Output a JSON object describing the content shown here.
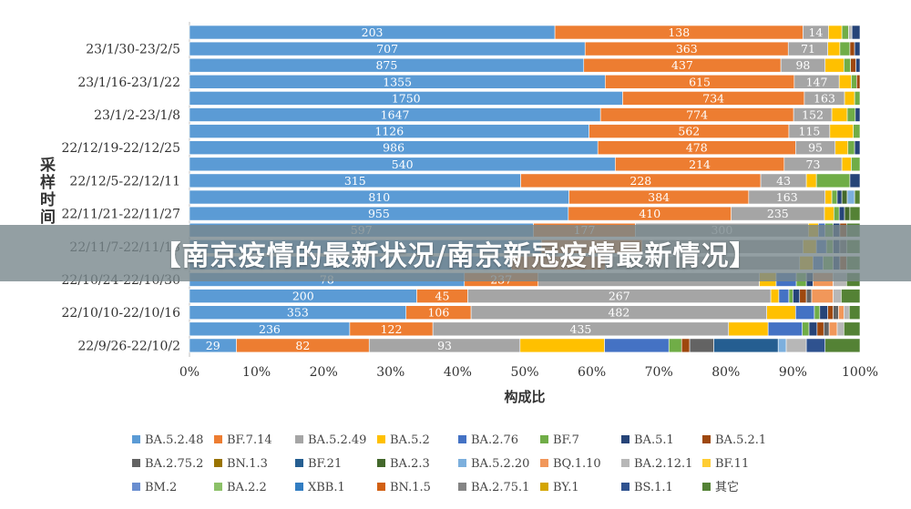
{
  "banner": {
    "text": "【南京疫情的最新状况/南京新冠疫情最新情况】"
  },
  "colors": {
    "BA.5.2.48": "#5B9BD5",
    "BF.7.14": "#ED7D31",
    "BA.5.2.49": "#A5A5A5",
    "BA.5.2": "#FFC000",
    "BA.2.76": "#4472C4",
    "BF.7": "#70AD47",
    "BA.5.1": "#264478",
    "BA.5.2.1": "#9E480E",
    "BA.2.75.2": "#636363",
    "BN.1.3": "#997300",
    "BF.21": "#255E91",
    "BA.2.3": "#43682B",
    "BA.5.2.20": "#7CAFDD",
    "BQ.1.10": "#F1975A",
    "BA.2.12.1": "#B7B7B7",
    "BF.11": "#FFCD33",
    "BM.2": "#698ED0",
    "BA.2.2": "#8CC168",
    "XBB.1": "#327DC2",
    "BN.1.5": "#D26012",
    "BA.2.75.1": "#848484",
    "BY.1": "#D4A500",
    "BS.1.1": "#2F528F",
    "其它": "#548235"
  },
  "chart_data": {
    "type": "bar",
    "orientation": "horizontal",
    "stacked": "percent",
    "xlabel": "构成比",
    "ylabel": "采样时间",
    "xlim": [
      0,
      100
    ],
    "x_ticks": [
      "0%",
      "10%",
      "20%",
      "30%",
      "40%",
      "50%",
      "60%",
      "70%",
      "80%",
      "90%",
      "100%"
    ],
    "y_tick_labels": [
      "23/1/30-23/2/5",
      "23/1/16-23/1/22",
      "23/1/2-23/1/8",
      "22/12/19-22/12/25",
      "22/12/5-22/12/11",
      "22/11/21-22/11/27",
      "22/11/7-22/11/13",
      "22/10/24-22/10/30",
      "22/10/10-22/10/16",
      "22/9/26-22/10/2"
    ],
    "legend": {
      "position": "bottom",
      "items": [
        "BA.5.2.48",
        "BF.7.14",
        "BA.5.2.49",
        "BA.5.2",
        "BA.2.76",
        "BF.7",
        "BA.5.1",
        "BA.5.2.1",
        "BA.2.75.2",
        "BN.1.3",
        "BF.21",
        "BA.2.3",
        "BA.5.2.20",
        "BQ.1.10",
        "BA.2.12.1",
        "BF.11",
        "BM.2",
        "BA.2.2",
        "XBB.1",
        "BN.1.5",
        "BA.2.75.1",
        "BY.1",
        "BS.1.1",
        "其它"
      ]
    },
    "rows": [
      {
        "labels": [
          203,
          138,
          14
        ],
        "segments": [
          [
            "BA.5.2.48",
            54.5
          ],
          [
            "BF.7.14",
            37.0
          ],
          [
            "BA.5.2.49",
            3.8
          ],
          [
            "BA.5.2",
            2.0
          ],
          [
            "BF.7",
            1.0
          ],
          [
            "BA.2.12.1",
            0.5
          ],
          [
            "BA.5.1",
            1.2
          ]
        ]
      },
      {
        "labels": [
          707,
          363,
          71
        ],
        "segments": [
          [
            "BA.5.2.48",
            59.0
          ],
          [
            "BF.7.14",
            30.3
          ],
          [
            "BA.5.2.49",
            5.9
          ],
          [
            "BA.5.2",
            1.8
          ],
          [
            "BF.7",
            1.5
          ],
          [
            "BA.5.2.1",
            0.7
          ],
          [
            "BA.5.1",
            0.8
          ]
        ]
      },
      {
        "labels": [
          875,
          437,
          98
        ],
        "segments": [
          [
            "BA.5.2.48",
            58.8
          ],
          [
            "BF.7.14",
            29.4
          ],
          [
            "BA.5.2.49",
            6.6
          ],
          [
            "BA.5.2",
            2.8
          ],
          [
            "BF.7",
            1.0
          ],
          [
            "BA.5.2.1",
            0.8
          ],
          [
            "BA.5.1",
            0.6
          ]
        ]
      },
      {
        "labels": [
          1355,
          615,
          147
        ],
        "segments": [
          [
            "BA.5.2.48",
            62.0
          ],
          [
            "BF.7.14",
            28.2
          ],
          [
            "BA.5.2.49",
            6.7
          ],
          [
            "BA.5.2",
            1.8
          ],
          [
            "BF.7",
            0.8
          ],
          [
            "BA.5.2.1",
            0.5
          ]
        ]
      },
      {
        "labels": [
          1750,
          734,
          163
        ],
        "segments": [
          [
            "BA.5.2.48",
            64.6
          ],
          [
            "BF.7.14",
            27.1
          ],
          [
            "BA.5.2.49",
            6.0
          ],
          [
            "BA.5.2",
            1.5
          ],
          [
            "BF.7",
            0.8
          ]
        ]
      },
      {
        "labels": [
          1647,
          774,
          152
        ],
        "segments": [
          [
            "BA.5.2.48",
            61.3
          ],
          [
            "BF.7.14",
            28.8
          ],
          [
            "BA.5.2.49",
            5.7
          ],
          [
            "BA.5.2",
            2.3
          ],
          [
            "BF.7",
            1.2
          ],
          [
            "BA.5.1",
            0.7
          ]
        ]
      },
      {
        "labels": [
          1126,
          562,
          115
        ],
        "segments": [
          [
            "BA.5.2.48",
            59.6
          ],
          [
            "BF.7.14",
            29.8
          ],
          [
            "BA.5.2.49",
            6.1
          ],
          [
            "BA.5.2",
            3.5
          ],
          [
            "BF.7",
            1.0
          ]
        ]
      },
      {
        "labels": [
          986,
          478,
          95
        ],
        "segments": [
          [
            "BA.5.2.48",
            60.9
          ],
          [
            "BF.7.14",
            29.5
          ],
          [
            "BA.5.2.49",
            5.9
          ],
          [
            "BA.5.2",
            1.9
          ],
          [
            "BF.7",
            1.0
          ],
          [
            "BA.5.1",
            0.8
          ]
        ]
      },
      {
        "labels": [
          540,
          214,
          73
        ],
        "segments": [
          [
            "BA.5.2.48",
            63.5
          ],
          [
            "BF.7.14",
            25.2
          ],
          [
            "BA.5.2.49",
            8.6
          ],
          [
            "BA.5.2",
            1.4
          ],
          [
            "BF.7",
            1.3
          ]
        ]
      },
      {
        "labels": [
          315,
          228,
          43
        ],
        "segments": [
          [
            "BA.5.2.48",
            49.4
          ],
          [
            "BF.7.14",
            35.8
          ],
          [
            "BA.5.2.49",
            6.8
          ],
          [
            "BA.5.2",
            1.5
          ],
          [
            "BF.7",
            5.0
          ],
          [
            "BA.5.1",
            1.5
          ]
        ]
      },
      {
        "labels": [
          810,
          384,
          163
        ],
        "segments": [
          [
            "BA.5.2.48",
            56.6
          ],
          [
            "BF.7.14",
            26.8
          ],
          [
            "BA.5.2.49",
            11.4
          ],
          [
            "BA.5.2",
            1.0
          ],
          [
            "BF.7",
            0.8
          ],
          [
            "BA.5.1",
            0.7
          ],
          [
            "BA.2.3",
            0.8
          ],
          [
            "BA.5.2.20",
            1.1
          ],
          [
            "其它",
            0.8
          ]
        ]
      },
      {
        "labels": [
          955,
          410,
          235
        ],
        "segments": [
          [
            "BA.5.2.48",
            56.5
          ],
          [
            "BF.7.14",
            24.3
          ],
          [
            "BA.5.2.49",
            13.9
          ],
          [
            "BA.5.2",
            1.4
          ],
          [
            "BF.7",
            0.8
          ],
          [
            "BA.5.1",
            0.8
          ],
          [
            "BA.2.3",
            0.8
          ],
          [
            "其它",
            1.5
          ]
        ]
      },
      {
        "labels": [
          597,
          177,
          300
        ],
        "segments": [
          [
            "BA.5.2.48",
            51.3
          ],
          [
            "BF.7.14",
            15.2
          ],
          [
            "BA.5.2.49",
            25.8
          ],
          [
            "BA.5.2",
            1.5
          ],
          [
            "BA.2.76",
            1.0
          ],
          [
            "BF.7",
            1.2
          ],
          [
            "BA.5.1",
            1.0
          ],
          [
            "BA.5.2.1",
            1.0
          ],
          [
            "其它",
            2.0
          ]
        ]
      },
      {
        "labels": [],
        "segments": [
          [
            "BA.5.2.48",
            52.5
          ],
          [
            "BF.7.14",
            15.0
          ],
          [
            "BA.5.2.49",
            24.0
          ],
          [
            "BA.5.2",
            2.0
          ],
          [
            "BA.2.76",
            1.5
          ],
          [
            "BF.7",
            1.0
          ],
          [
            "BA.5.1",
            1.0
          ],
          [
            "BA.2.75.2",
            1.0
          ],
          [
            "其它",
            2.0
          ]
        ]
      },
      {
        "labels": [],
        "segments": [
          [
            "BA.5.2.48",
            48.0
          ],
          [
            "BF.7.14",
            14.0
          ],
          [
            "BA.5.2.49",
            29.0
          ],
          [
            "BA.5.2",
            2.0
          ],
          [
            "BA.2.76",
            1.5
          ],
          [
            "BF.7",
            1.5
          ],
          [
            "BA.5.1",
            1.0
          ],
          [
            "BA.5.2.1",
            1.0
          ],
          [
            "其它",
            2.0
          ]
        ]
      },
      {
        "labels": [
          78,
          237
        ],
        "segments": [
          [
            "BA.5.2.48",
            41.0
          ],
          [
            "BF.7.14",
            11.0
          ],
          [
            "BA.5.2.49",
            33.0
          ],
          [
            "BA.5.2",
            2.5
          ],
          [
            "BA.2.76",
            3.0
          ],
          [
            "BF.7",
            1.5
          ],
          [
            "BA.5.1",
            1.0
          ],
          [
            "BQ.1.10",
            3.0
          ],
          [
            "BA.2.12.1",
            2.0
          ],
          [
            "其它",
            2.0
          ]
        ]
      },
      {
        "labels": [
          200,
          45,
          267
        ],
        "segments": [
          [
            "BA.5.2.48",
            33.9
          ],
          [
            "BF.7.14",
            7.6
          ],
          [
            "BA.5.2.49",
            45.2
          ],
          [
            "BA.5.2",
            1.2
          ],
          [
            "BA.2.76",
            1.5
          ],
          [
            "BF.7",
            0.6
          ],
          [
            "BA.5.1",
            1.0
          ],
          [
            "BA.5.2.1",
            1.0
          ],
          [
            "BA.2.75.2",
            0.8
          ],
          [
            "BQ.1.10",
            3.2
          ],
          [
            "BA.2.12.1",
            1.2
          ],
          [
            "其它",
            2.8
          ]
        ]
      },
      {
        "labels": [
          353,
          106,
          482
        ],
        "segments": [
          [
            "BA.5.2.48",
            32.3
          ],
          [
            "BF.7.14",
            9.7
          ],
          [
            "BA.5.2.49",
            44.1
          ],
          [
            "BA.5.2",
            4.3
          ],
          [
            "BA.2.76",
            2.8
          ],
          [
            "BF.7",
            0.8
          ],
          [
            "BA.5.1",
            1.2
          ],
          [
            "BA.5.2.1",
            0.8
          ],
          [
            "BA.2.75.2",
            0.8
          ],
          [
            "BQ.1.10",
            0.8
          ],
          [
            "BA.2.12.1",
            0.8
          ],
          [
            "其它",
            1.6
          ]
        ]
      },
      {
        "labels": [
          236,
          122,
          435
        ],
        "segments": [
          [
            "BA.5.2.48",
            23.9
          ],
          [
            "BF.7.14",
            12.4
          ],
          [
            "BA.5.2.49",
            44.1
          ],
          [
            "BA.5.2",
            5.9
          ],
          [
            "BA.2.76",
            5.1
          ],
          [
            "BF.7",
            1.0
          ],
          [
            "BA.5.1",
            1.2
          ],
          [
            "BA.5.2.1",
            1.0
          ],
          [
            "BA.2.75.2",
            0.8
          ],
          [
            "BQ.1.10",
            1.2
          ],
          [
            "BA.2.12.1",
            1.0
          ],
          [
            "其它",
            2.4
          ]
        ]
      },
      {
        "labels": [
          29,
          82,
          93
        ],
        "segments": [
          [
            "BA.5.2.48",
            7.0
          ],
          [
            "BF.7.14",
            19.8
          ],
          [
            "BA.5.2.49",
            22.5
          ],
          [
            "BA.5.2",
            12.6
          ],
          [
            "BA.2.76",
            9.6
          ],
          [
            "BF.7",
            1.9
          ],
          [
            "BA.5.2.1",
            1.2
          ],
          [
            "BA.2.75.2",
            3.6
          ],
          [
            "BF.21",
            9.6
          ],
          [
            "BA.5.2.20",
            1.2
          ],
          [
            "BA.2.12.1",
            3.0
          ],
          [
            "BS.1.1",
            2.8
          ],
          [
            "其它",
            5.2
          ]
        ]
      }
    ]
  }
}
